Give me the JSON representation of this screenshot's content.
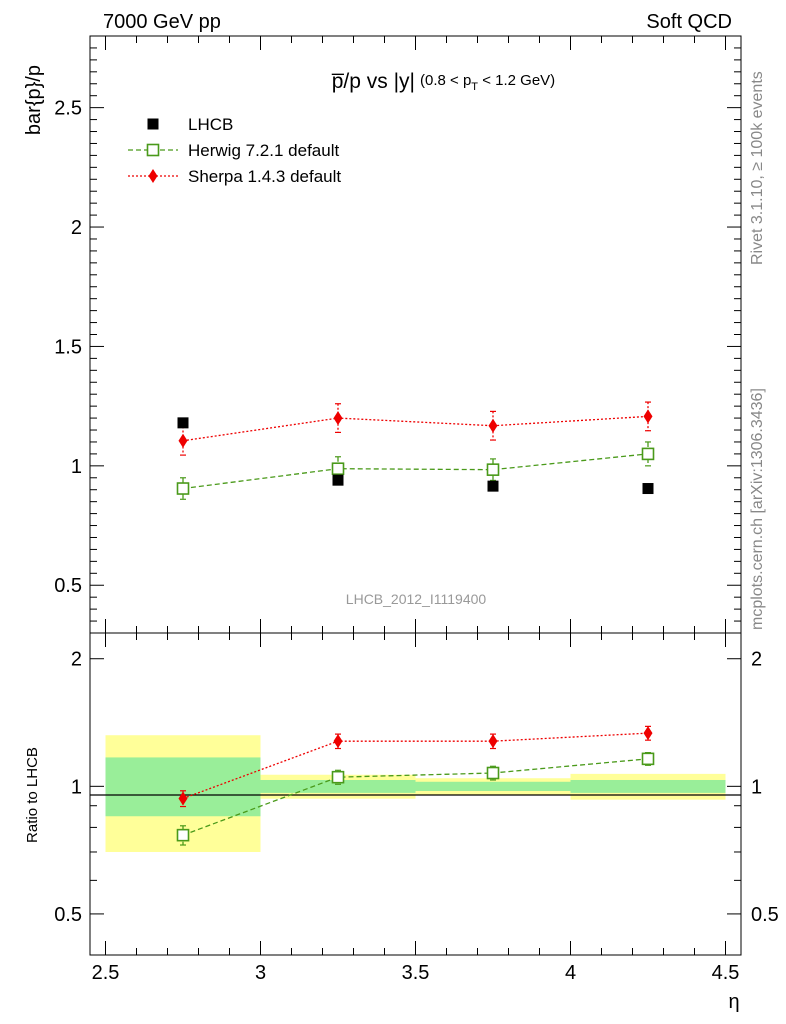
{
  "header": {
    "left": "7000 GeV pp",
    "right": "Soft QCD"
  },
  "side_labels": {
    "rivet": "Rivet 3.1.10, ≥ 100k events",
    "mcplots": "mcplots.cern.ch [arXiv:1306.3436]"
  },
  "chart_data": [
    {
      "type": "scatter",
      "title": {
        "main": "p̅/p vs |y|",
        "cut_open": "(0.8 < p",
        "cut_sub": "T",
        "cut_close": " < 1.2 GeV)"
      },
      "ylabel": "bar{p}/p",
      "analysis_id": "LHCB_2012_I1119400",
      "xlim": [
        2.45,
        4.55
      ],
      "ylim": [
        0.3,
        2.8
      ],
      "yticks": [
        0.5,
        1,
        1.5,
        2,
        2.5
      ],
      "ytick_labels": [
        "0.5",
        "1",
        "1.5",
        "2",
        "2.5"
      ],
      "legend_position": "top-left",
      "series": [
        {
          "name": "LHCB",
          "color": "#000000",
          "marker": "filled-square",
          "x": [
            2.75,
            3.25,
            3.75,
            4.25
          ],
          "y": [
            1.18,
            0.94,
            0.915,
            0.905
          ],
          "yerr": [
            0.02,
            0.01,
            0.01,
            0.01
          ]
        },
        {
          "name": "Herwig 7.2.1 default",
          "color": "#4a9a1a",
          "marker": "open-square",
          "line": "dashed",
          "x": [
            2.75,
            3.25,
            3.75,
            4.25
          ],
          "y": [
            0.905,
            0.988,
            0.984,
            1.05
          ],
          "yerr": [
            0.045,
            0.05,
            0.045,
            0.05
          ]
        },
        {
          "name": "Sherpa 1.4.3 default",
          "color": "#ee0000",
          "marker": "filled-diamond",
          "line": "dotted",
          "x": [
            2.75,
            3.25,
            3.75,
            4.25
          ],
          "y": [
            1.105,
            1.2,
            1.168,
            1.207
          ],
          "yerr": [
            0.06,
            0.06,
            0.06,
            0.06
          ]
        }
      ]
    },
    {
      "type": "scatter",
      "ylabel": "Ratio to LHCB",
      "xlabel": "η",
      "xlim": [
        2.45,
        4.55
      ],
      "ylim": [
        0.4,
        2.3
      ],
      "log_y": true,
      "yticks": [
        0.5,
        1,
        2
      ],
      "ytick_labels": [
        "0.5",
        "1",
        "2"
      ],
      "xticks": [
        2.5,
        3,
        3.5,
        4,
        4.5
      ],
      "xtick_labels": [
        "2.5",
        "3",
        "3.5",
        "4",
        "4.5"
      ],
      "bands": [
        {
          "x0": 2.5,
          "x1": 3.0,
          "inner": [
            0.85,
            1.17
          ],
          "outer": [
            0.7,
            1.32
          ]
        },
        {
          "x0": 3.0,
          "x1": 3.5,
          "inner": [
            0.965,
            1.035
          ],
          "outer": [
            0.935,
            1.065
          ]
        },
        {
          "x0": 3.5,
          "x1": 4.0,
          "inner": [
            0.975,
            1.025
          ],
          "outer": [
            0.955,
            1.045
          ]
        },
        {
          "x0": 4.0,
          "x1": 4.5,
          "inner": [
            0.965,
            1.035
          ],
          "outer": [
            0.93,
            1.07
          ]
        }
      ],
      "band_colors": {
        "inner": "#99ee99",
        "outer": "#ffff99"
      },
      "series": [
        {
          "name": "Herwig 7.2.1 default",
          "color": "#4a9a1a",
          "marker": "open-square",
          "line": "dashed",
          "x": [
            2.75,
            3.25,
            3.75,
            4.25
          ],
          "y": [
            0.767,
            1.051,
            1.075,
            1.161
          ],
          "yerr": [
            0.04,
            0.04,
            0.04,
            0.04
          ]
        },
        {
          "name": "Sherpa 1.4.3 default",
          "color": "#ee0000",
          "marker": "filled-diamond",
          "line": "dotted",
          "x": [
            2.75,
            3.25,
            3.75,
            4.25
          ],
          "y": [
            0.936,
            1.278,
            1.278,
            1.335
          ],
          "yerr": [
            0.04,
            0.05,
            0.05,
            0.05
          ]
        }
      ]
    }
  ]
}
